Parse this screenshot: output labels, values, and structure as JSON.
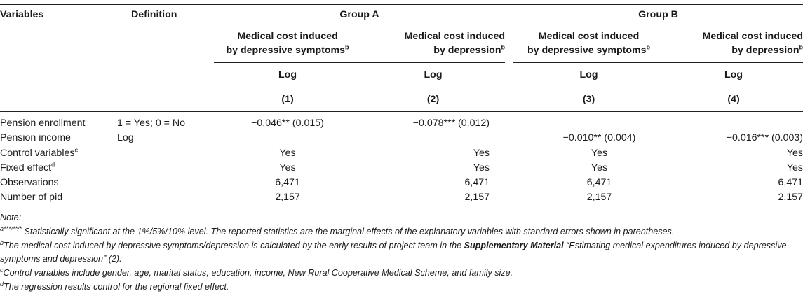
{
  "table": {
    "header": {
      "variables": "Variables",
      "definition": "Definition",
      "group_a": "Group A",
      "group_b": "Group B",
      "col1_line1": "Medical cost induced",
      "col1_line2": "by depressive symptoms",
      "col2_line1": "Medical cost induced",
      "col2_line2": "by depression",
      "col3_line1": "Medical cost induced",
      "col3_line2": "by depressive symptoms",
      "col4_line1": "Medical cost induced",
      "col4_line2": "by depression",
      "sup_b": "b",
      "log1": "Log",
      "log2": "Log",
      "log3": "Log",
      "log4": "Log",
      "num1": "(1)",
      "num2": "(2)",
      "num3": "(3)",
      "num4": "(4)"
    },
    "rows": [
      {
        "var": "Pension enrollment",
        "sup": "",
        "def": "1 = Yes; 0 = No",
        "c1": "−0.046** (0.015)",
        "c2": "−0.078*** (0.012)",
        "c3": "",
        "c4": ""
      },
      {
        "var": "Pension income",
        "sup": "",
        "def": "Log",
        "c1": "",
        "c2": "",
        "c3": "−0.010** (0.004)",
        "c4": "−0.016*** (0.003)"
      },
      {
        "var": "Control variables",
        "sup": "c",
        "def": "",
        "c1": "Yes",
        "c2": "Yes",
        "c3": "Yes",
        "c4": "Yes"
      },
      {
        "var": "Fixed effect",
        "sup": "d",
        "def": "",
        "c1": "Yes",
        "c2": "Yes",
        "c3": "Yes",
        "c4": "Yes"
      },
      {
        "var": "Observations",
        "sup": "",
        "def": "",
        "c1": "6,471",
        "c2": "6,471",
        "c3": "6,471",
        "c4": "6,471"
      },
      {
        "var": "Number of pid",
        "sup": "",
        "def": "",
        "c1": "2,157",
        "c2": "2,157",
        "c3": "2,157",
        "c4": "2,157"
      }
    ]
  },
  "notes": {
    "title": "Note:",
    "a_sup": "a***/**/*",
    "a_text": " Statistically significant at the 1%/5%/10% level. The reported statistics are the marginal effects of the explanatory variables with standard errors shown in parentheses.",
    "b_sup": "b",
    "b_text_1": "The medical cost induced by depressive symptoms/depression is calculated by the early results of project team in the ",
    "b_bold": "Supplementary Material",
    "b_text_2": " “Estimating medical expenditures induced by depressive symptoms and depression” (2).",
    "c_sup": "c",
    "c_text": "Control variables include gender, age, marital status, education, income, New Rural Cooperative Medical Scheme, and family size.",
    "d_sup": "d",
    "d_text": "The regression results control for the regional fixed effect."
  }
}
